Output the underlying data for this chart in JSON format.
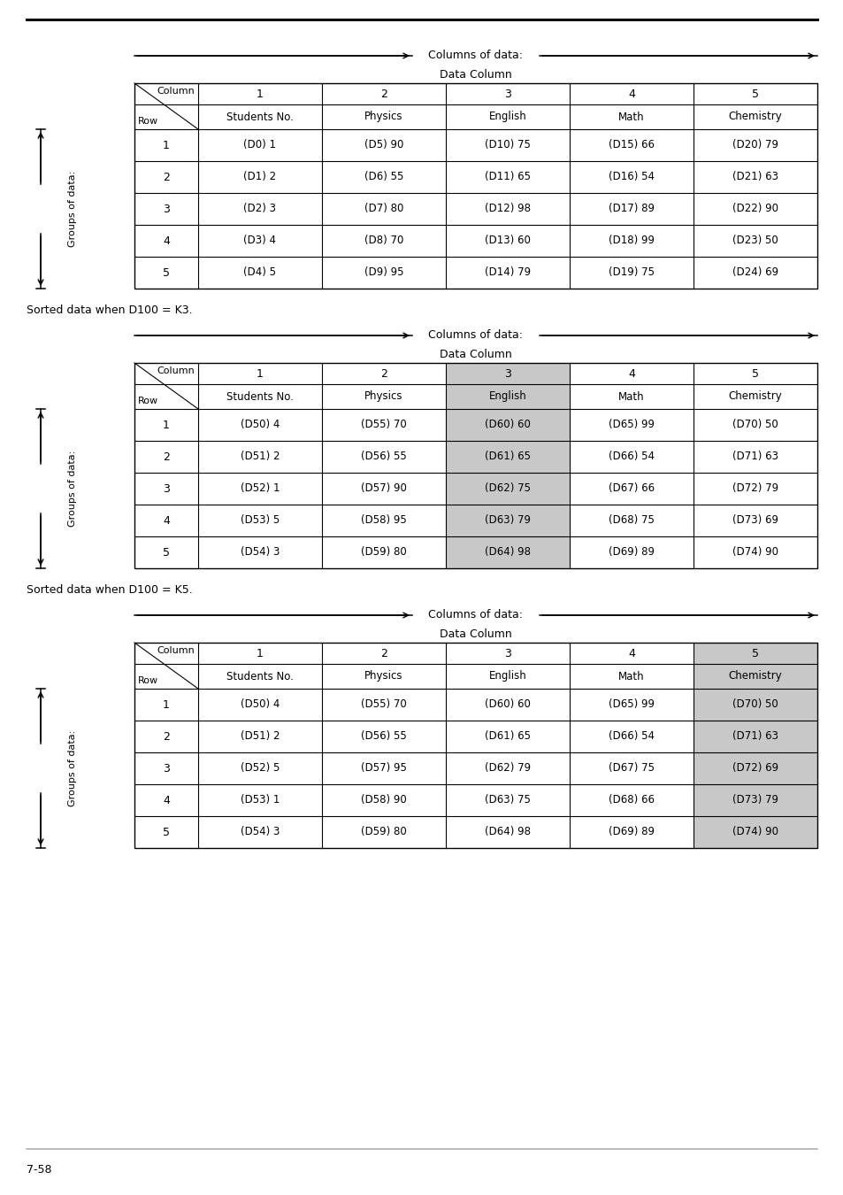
{
  "background_color": "#ffffff",
  "highlight_gray": "#c8c8c8",
  "tables": [
    {
      "label_above": null,
      "col_header_nums": [
        "1",
        "2",
        "3",
        "4",
        "5"
      ],
      "col_header_names": [
        "Students No.",
        "Physics",
        "English",
        "Math",
        "Chemistry"
      ],
      "rows": [
        [
          "1",
          "(D0) 1",
          "(D5) 90",
          "(D10) 75",
          "(D15) 66",
          "(D20) 79"
        ],
        [
          "2",
          "(D1) 2",
          "(D6) 55",
          "(D11) 65",
          "(D16) 54",
          "(D21) 63"
        ],
        [
          "3",
          "(D2) 3",
          "(D7) 80",
          "(D12) 98",
          "(D17) 89",
          "(D22) 90"
        ],
        [
          "4",
          "(D3) 4",
          "(D8) 70",
          "(D13) 60",
          "(D18) 99",
          "(D23) 50"
        ],
        [
          "5",
          "(D4) 5",
          "(D9) 95",
          "(D14) 79",
          "(D19) 75",
          "(D24) 69"
        ]
      ],
      "highlight_col": null
    },
    {
      "label_above": "Sorted data when D100 = K3.",
      "col_header_nums": [
        "1",
        "2",
        "3",
        "4",
        "5"
      ],
      "col_header_names": [
        "Students No.",
        "Physics",
        "English",
        "Math",
        "Chemistry"
      ],
      "rows": [
        [
          "1",
          "(D50) 4",
          "(D55) 70",
          "(D60) 60",
          "(D65) 99",
          "(D70) 50"
        ],
        [
          "2",
          "(D51) 2",
          "(D56) 55",
          "(D61) 65",
          "(D66) 54",
          "(D71) 63"
        ],
        [
          "3",
          "(D52) 1",
          "(D57) 90",
          "(D62) 75",
          "(D67) 66",
          "(D72) 79"
        ],
        [
          "4",
          "(D53) 5",
          "(D58) 95",
          "(D63) 79",
          "(D68) 75",
          "(D73) 69"
        ],
        [
          "5",
          "(D54) 3",
          "(D59) 80",
          "(D64) 98",
          "(D69) 89",
          "(D74) 90"
        ]
      ],
      "highlight_col": 2
    },
    {
      "label_above": "Sorted data when D100 = K5.",
      "col_header_nums": [
        "1",
        "2",
        "3",
        "4",
        "5"
      ],
      "col_header_names": [
        "Students No.",
        "Physics",
        "English",
        "Math",
        "Chemistry"
      ],
      "rows": [
        [
          "1",
          "(D50) 4",
          "(D55) 70",
          "(D60) 60",
          "(D65) 99",
          "(D70) 50"
        ],
        [
          "2",
          "(D51) 2",
          "(D56) 55",
          "(D61) 65",
          "(D66) 54",
          "(D71) 63"
        ],
        [
          "3",
          "(D52) 5",
          "(D57) 95",
          "(D62) 79",
          "(D67) 75",
          "(D72) 69"
        ],
        [
          "4",
          "(D53) 1",
          "(D58) 90",
          "(D63) 75",
          "(D68) 66",
          "(D73) 79"
        ],
        [
          "5",
          "(D54) 3",
          "(D59) 80",
          "(D64) 98",
          "(D69) 89",
          "(D74) 90"
        ]
      ],
      "highlight_col": 4
    }
  ],
  "footer_text": "7-58",
  "footer_line_color": "#b0b0b0"
}
